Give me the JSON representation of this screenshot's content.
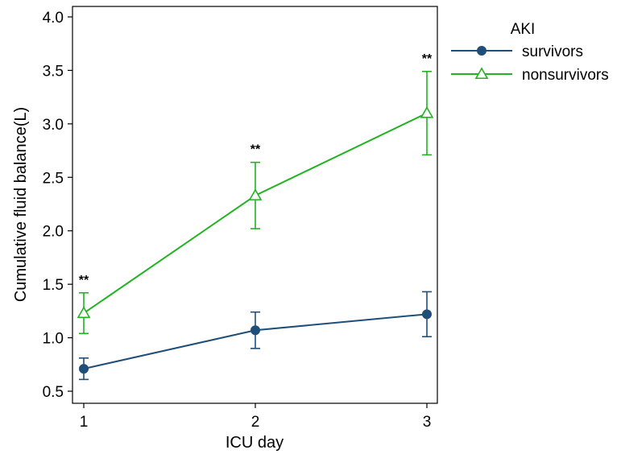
{
  "chart_data": {
    "type": "line",
    "x": [
      1,
      2,
      3
    ],
    "x_ticks": [
      "1",
      "2",
      "3"
    ],
    "y_ticks": [
      "0.5",
      "1.0",
      "1.5",
      "2.0",
      "2.5",
      "3.0",
      "3.5",
      "4.0"
    ],
    "ylim": [
      0.5,
      4.0
    ],
    "xlabel": "ICU day",
    "ylabel": "Cumulative fluid balance(L)",
    "grid": false,
    "legend": {
      "title": "AKI",
      "position": "right"
    },
    "series": [
      {
        "name": "survivors",
        "color": "#1f4e79",
        "marker": "circle",
        "values": [
          0.71,
          1.07,
          1.22
        ],
        "lower": [
          0.61,
          0.9,
          1.01
        ],
        "upper": [
          0.81,
          1.24,
          1.43
        ]
      },
      {
        "name": "nonsurvivors",
        "color": "#22b322",
        "marker": "triangle-open",
        "values": [
          1.23,
          2.33,
          3.1
        ],
        "lower": [
          1.04,
          2.02,
          2.71
        ],
        "upper": [
          1.42,
          2.64,
          3.49
        ]
      }
    ],
    "annotations": [
      {
        "x": 1,
        "y": 1.42,
        "text": "**"
      },
      {
        "x": 2,
        "y": 2.64,
        "text": "**"
      },
      {
        "x": 3,
        "y": 3.49,
        "text": "**"
      }
    ]
  }
}
